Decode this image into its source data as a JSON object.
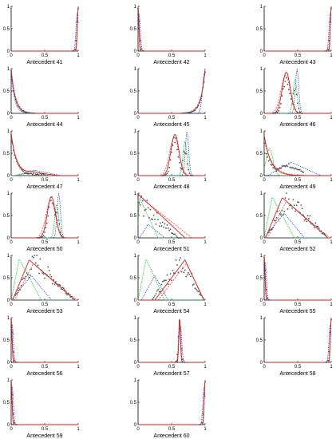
{
  "chart_data": {
    "type": "line",
    "layout": {
      "columns": 3
    },
    "x_ticks": [
      "0",
      "0.5",
      "1"
    ],
    "y_ticks": [
      "0",
      "0.5",
      "1"
    ],
    "xlim": [
      0,
      1
    ],
    "ylim": [
      0,
      1
    ],
    "grid": false,
    "legend": "none",
    "series_styles": {
      "red_solid": {
        "color": "#d11f1f",
        "dash": ""
      },
      "red_dashed": {
        "color": "#e04040",
        "dash": "2,1.5"
      },
      "green": {
        "color": "#22c22e",
        "dash": "1.5,1"
      },
      "blue": {
        "color": "#1a35d8",
        "dash": "1.2,1.2"
      },
      "gray_points": {
        "color": "#555555"
      }
    },
    "panels": [
      {
        "label": "Antecedent 41",
        "peak": 1.0,
        "kind": "spike_right"
      },
      {
        "label": "Antecedent 42",
        "peak": 0.0,
        "kind": "spike_left"
      },
      {
        "label": "Antecedent 43",
        "peak": 1.0,
        "kind": "spike_right"
      },
      {
        "label": "Antecedent 44",
        "peak": 0.02,
        "kind": "decay_left"
      },
      {
        "label": "Antecedent 45",
        "peak": 0.98,
        "kind": "rise_right"
      },
      {
        "label": "Antecedent 46",
        "peak": 0.33,
        "kind": "twin_peaks",
        "second_peak": 0.46
      },
      {
        "label": "Antecedent 47",
        "peak": 0.02,
        "kind": "decay_tail"
      },
      {
        "label": "Antecedent 48",
        "peak": 0.55,
        "kind": "twin_peaks",
        "second_peak": 0.7
      },
      {
        "label": "Antecedent 49",
        "peak": 0.05,
        "kind": "decay_mixed"
      },
      {
        "label": "Antecedent 50",
        "peak": 0.6,
        "kind": "twin_peaks",
        "second_peak": 0.68
      },
      {
        "label": "Antecedent 51",
        "peak": 0.02,
        "kind": "triangle_wide"
      },
      {
        "label": "Antecedent 52",
        "peak": 0.25,
        "kind": "triangles"
      },
      {
        "label": "Antecedent 53",
        "peak": 0.25,
        "kind": "triangles"
      },
      {
        "label": "Antecedent 54",
        "peak": 0.65,
        "kind": "triangles_right"
      },
      {
        "label": "Antecedent 55",
        "peak": 0.0,
        "kind": "spike_left"
      },
      {
        "label": "Antecedent 56",
        "peak": 0.0,
        "kind": "spike_left"
      },
      {
        "label": "Antecedent 57",
        "peak": 0.62,
        "kind": "spike_mid"
      },
      {
        "label": "Antecedent 58",
        "peak": 1.0,
        "kind": "spike_right"
      },
      {
        "label": "Antecedent 59",
        "peak": 0.0,
        "kind": "spike_left"
      },
      {
        "label": "Antecedent 60",
        "peak": 1.0,
        "kind": "spike_right"
      }
    ]
  }
}
